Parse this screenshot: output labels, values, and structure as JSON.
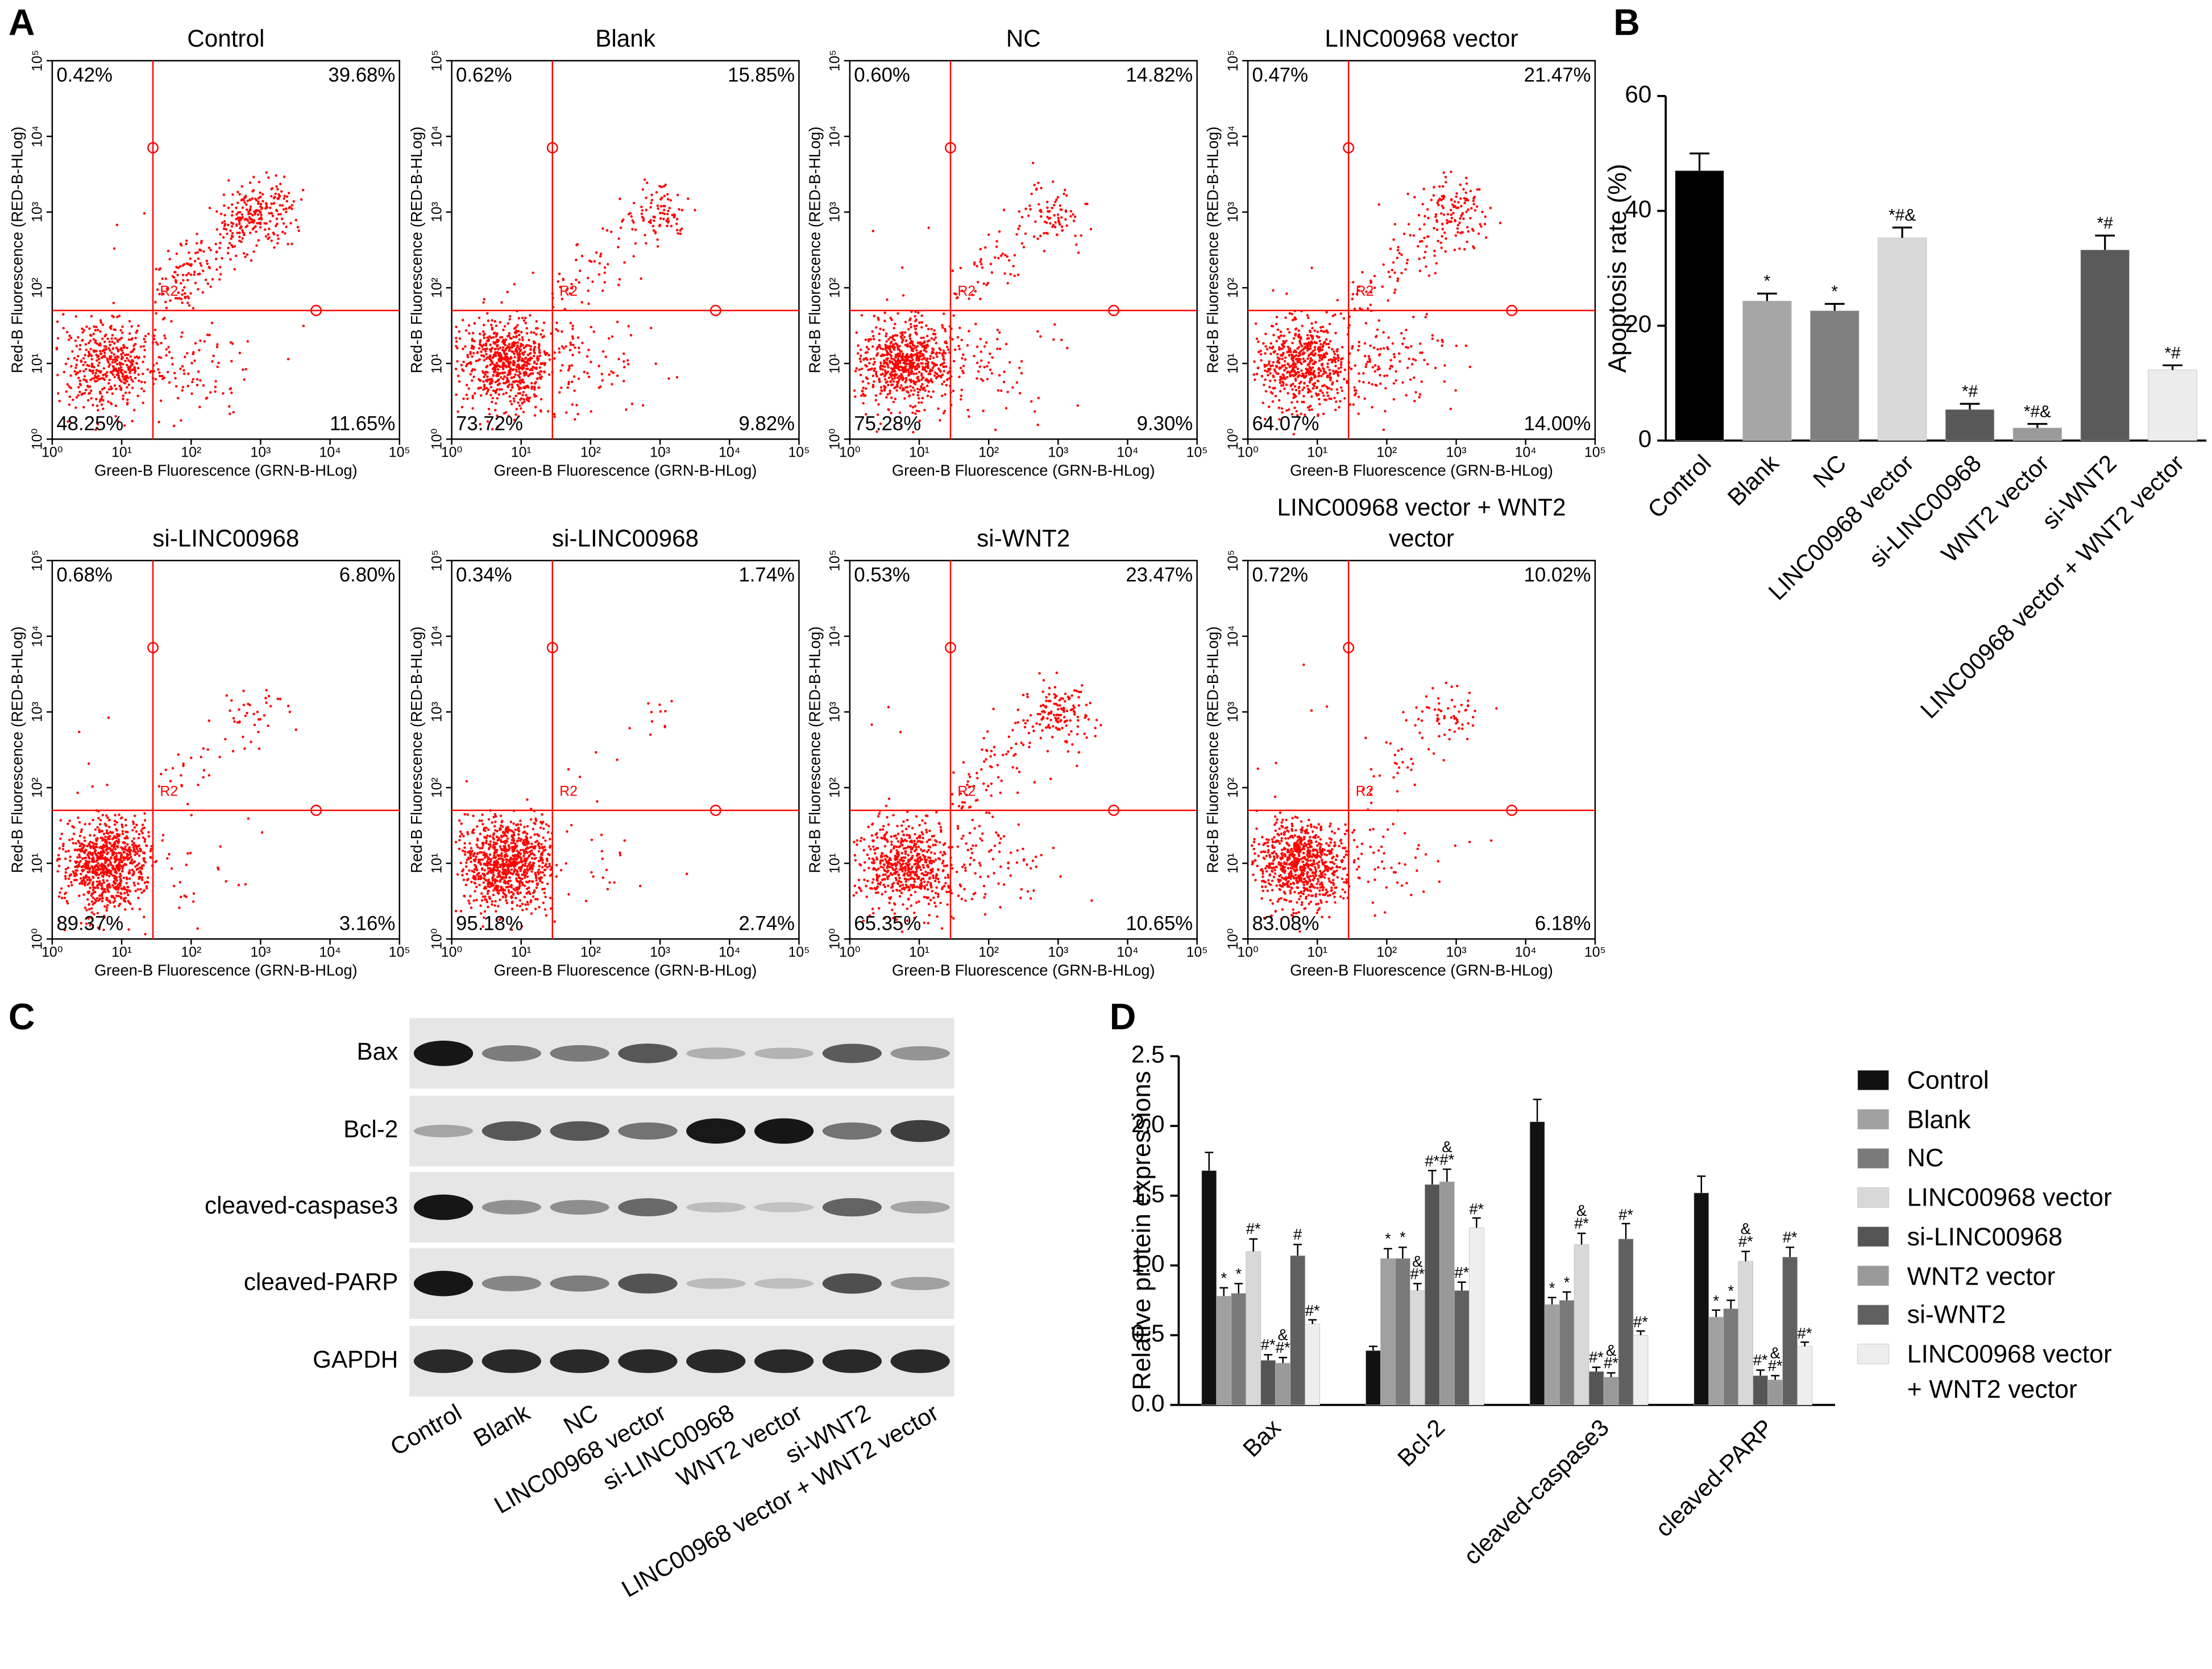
{
  "panel_labels": [
    "A",
    "B",
    "C",
    "D"
  ],
  "chart_data": [
    {
      "type": "scatter",
      "title": "Control",
      "values": [
        0.42,
        39.68,
        48.25,
        11.65
      ],
      "value_labels": [
        "0.42%",
        "39.68%",
        "48.25%",
        "11.65%"
      ],
      "xlabel": "Green-B Fluorescence (GRN-B-HLog)",
      "ylabel": "Red-B Fluorescence (RED-B-HLog)",
      "gate_label": "R2",
      "color": "#ff0000",
      "xscale": "log",
      "yscale": "log",
      "xlim": [
        1,
        100000
      ],
      "ylim": [
        1,
        100000
      ],
      "xticks": [
        {
          "value": 1,
          "label": "10⁰"
        },
        {
          "value": 10,
          "label": "10¹"
        },
        {
          "value": 100,
          "label": "10²"
        },
        {
          "value": 1000,
          "label": "10³"
        },
        {
          "value": 10000,
          "label": "10⁴"
        },
        {
          "value": 100000,
          "label": "10⁵"
        }
      ],
      "yticks": [
        {
          "value": 1,
          "label": "10⁰"
        },
        {
          "value": 10,
          "label": "10¹"
        },
        {
          "value": 100,
          "label": "10²"
        },
        {
          "value": 1000,
          "label": "10³"
        },
        {
          "value": 10000,
          "label": "10⁴"
        },
        {
          "value": 100000,
          "label": "10⁵"
        }
      ]
    },
    {
      "type": "scatter",
      "title": "Blank",
      "values": [
        0.62,
        15.85,
        73.72,
        9.82
      ],
      "value_labels": [
        "0.62%",
        "15.85%",
        "73.72%",
        "9.82%"
      ],
      "xlabel": "Green-B Fluorescence (GRN-B-HLog)",
      "ylabel": "Red-B Fluorescence (RED-B-HLog)",
      "gate_label": "R2",
      "color": "#ff0000",
      "xscale": "log",
      "yscale": "log",
      "xlim": [
        1,
        100000
      ],
      "ylim": [
        1,
        100000
      ],
      "xticks": [
        {
          "value": 1,
          "label": "10⁰"
        },
        {
          "value": 10,
          "label": "10¹"
        },
        {
          "value": 100,
          "label": "10²"
        },
        {
          "value": 1000,
          "label": "10³"
        },
        {
          "value": 10000,
          "label": "10⁴"
        },
        {
          "value": 100000,
          "label": "10⁵"
        }
      ],
      "yticks": [
        {
          "value": 1,
          "label": "10⁰"
        },
        {
          "value": 10,
          "label": "10¹"
        },
        {
          "value": 100,
          "label": "10²"
        },
        {
          "value": 1000,
          "label": "10³"
        },
        {
          "value": 10000,
          "label": "10⁴"
        },
        {
          "value": 100000,
          "label": "10⁵"
        }
      ]
    },
    {
      "type": "scatter",
      "title": "NC",
      "values": [
        0.6,
        14.82,
        75.28,
        9.3
      ],
      "value_labels": [
        "0.60%",
        "14.82%",
        "75.28%",
        "9.30%"
      ],
      "xlabel": "Green-B Fluorescence (GRN-B-HLog)",
      "ylabel": "Red-B Fluorescence (RED-B-HLog)",
      "gate_label": "R2",
      "color": "#ff0000",
      "xscale": "log",
      "yscale": "log",
      "xlim": [
        1,
        100000
      ],
      "ylim": [
        1,
        100000
      ],
      "xticks": [
        {
          "value": 1,
          "label": "10⁰"
        },
        {
          "value": 10,
          "label": "10¹"
        },
        {
          "value": 100,
          "label": "10²"
        },
        {
          "value": 1000,
          "label": "10³"
        },
        {
          "value": 10000,
          "label": "10⁴"
        },
        {
          "value": 100000,
          "label": "10⁵"
        }
      ],
      "yticks": [
        {
          "value": 1,
          "label": "10⁰"
        },
        {
          "value": 10,
          "label": "10¹"
        },
        {
          "value": 100,
          "label": "10²"
        },
        {
          "value": 1000,
          "label": "10³"
        },
        {
          "value": 10000,
          "label": "10⁴"
        },
        {
          "value": 100000,
          "label": "10⁵"
        }
      ]
    },
    {
      "type": "scatter",
      "title": "LINC00968 vector",
      "values": [
        0.47,
        21.47,
        64.07,
        14.0
      ],
      "value_labels": [
        "0.47%",
        "21.47%",
        "64.07%",
        "14.00%"
      ],
      "xlabel": "Green-B Fluorescence (GRN-B-HLog)",
      "ylabel": "Red-B Fluorescence (RED-B-HLog)",
      "gate_label": "R2",
      "color": "#ff0000",
      "xscale": "log",
      "yscale": "log",
      "xlim": [
        1,
        100000
      ],
      "ylim": [
        1,
        100000
      ],
      "xticks": [
        {
          "value": 1,
          "label": "10⁰"
        },
        {
          "value": 10,
          "label": "10¹"
        },
        {
          "value": 100,
          "label": "10²"
        },
        {
          "value": 1000,
          "label": "10³"
        },
        {
          "value": 10000,
          "label": "10⁴"
        },
        {
          "value": 100000,
          "label": "10⁵"
        }
      ],
      "yticks": [
        {
          "value": 1,
          "label": "10⁰"
        },
        {
          "value": 10,
          "label": "10¹"
        },
        {
          "value": 100,
          "label": "10²"
        },
        {
          "value": 1000,
          "label": "10³"
        },
        {
          "value": 10000,
          "label": "10⁴"
        },
        {
          "value": 100000,
          "label": "10⁵"
        }
      ]
    },
    {
      "type": "scatter",
      "title": "si-LINC00968",
      "values": [
        0.68,
        6.8,
        89.37,
        3.16
      ],
      "value_labels": [
        "0.68%",
        "6.80%",
        "89.37%",
        "3.16%"
      ],
      "xlabel": "Green-B Fluorescence (GRN-B-HLog)",
      "ylabel": "Red-B Fluorescence (RED-B-HLog)",
      "gate_label": "R2",
      "color": "#ff0000",
      "xscale": "log",
      "yscale": "log",
      "xlim": [
        1,
        100000
      ],
      "ylim": [
        1,
        100000
      ],
      "xticks": [
        {
          "value": 1,
          "label": "10⁰"
        },
        {
          "value": 10,
          "label": "10¹"
        },
        {
          "value": 100,
          "label": "10²"
        },
        {
          "value": 1000,
          "label": "10³"
        },
        {
          "value": 10000,
          "label": "10⁴"
        },
        {
          "value": 100000,
          "label": "10⁵"
        }
      ],
      "yticks": [
        {
          "value": 1,
          "label": "10⁰"
        },
        {
          "value": 10,
          "label": "10¹"
        },
        {
          "value": 100,
          "label": "10²"
        },
        {
          "value": 1000,
          "label": "10³"
        },
        {
          "value": 10000,
          "label": "10⁴"
        },
        {
          "value": 100000,
          "label": "10⁵"
        }
      ]
    },
    {
      "type": "scatter",
      "title": "si-LINC00968",
      "values": [
        0.34,
        1.74,
        95.18,
        2.74
      ],
      "value_labels": [
        "0.34%",
        "1.74%",
        "95.18%",
        "2.74%"
      ],
      "xlabel": "Green-B Fluorescence (GRN-B-HLog)",
      "ylabel": "Red-B Fluorescence (RED-B-HLog)",
      "gate_label": "R2",
      "color": "#ff0000",
      "xscale": "log",
      "yscale": "log",
      "xlim": [
        1,
        100000
      ],
      "ylim": [
        1,
        100000
      ],
      "xticks": [
        {
          "value": 1,
          "label": "10⁰"
        },
        {
          "value": 10,
          "label": "10¹"
        },
        {
          "value": 100,
          "label": "10²"
        },
        {
          "value": 1000,
          "label": "10³"
        },
        {
          "value": 10000,
          "label": "10⁴"
        },
        {
          "value": 100000,
          "label": "10⁵"
        }
      ],
      "yticks": [
        {
          "value": 1,
          "label": "10⁰"
        },
        {
          "value": 10,
          "label": "10¹"
        },
        {
          "value": 100,
          "label": "10²"
        },
        {
          "value": 1000,
          "label": "10³"
        },
        {
          "value": 10000,
          "label": "10⁴"
        },
        {
          "value": 100000,
          "label": "10⁵"
        }
      ]
    },
    {
      "type": "scatter",
      "title": "si-WNT2",
      "values": [
        0.53,
        23.47,
        65.35,
        10.65
      ],
      "value_labels": [
        "0.53%",
        "23.47%",
        "65.35%",
        "10.65%"
      ],
      "xlabel": "Green-B Fluorescence (GRN-B-HLog)",
      "ylabel": "Red-B Fluorescence (RED-B-HLog)",
      "gate_label": "R2",
      "color": "#ff0000",
      "xscale": "log",
      "yscale": "log",
      "xlim": [
        1,
        100000
      ],
      "ylim": [
        1,
        100000
      ],
      "xticks": [
        {
          "value": 1,
          "label": "10⁰"
        },
        {
          "value": 10,
          "label": "10¹"
        },
        {
          "value": 100,
          "label": "10²"
        },
        {
          "value": 1000,
          "label": "10³"
        },
        {
          "value": 10000,
          "label": "10⁴"
        },
        {
          "value": 100000,
          "label": "10⁵"
        }
      ],
      "yticks": [
        {
          "value": 1,
          "label": "10⁰"
        },
        {
          "value": 10,
          "label": "10¹"
        },
        {
          "value": 100,
          "label": "10²"
        },
        {
          "value": 1000,
          "label": "10³"
        },
        {
          "value": 10000,
          "label": "10⁴"
        },
        {
          "value": 100000,
          "label": "10⁵"
        }
      ]
    },
    {
      "type": "scatter",
      "title": "LINC00968 vector + WNT2 vector",
      "values": [
        0.72,
        10.02,
        83.08,
        6.18
      ],
      "value_labels": [
        "0.72%",
        "10.02%",
        "83.08%",
        "6.18%"
      ],
      "xlabel": "Green-B Fluorescence (GRN-B-HLog)",
      "ylabel": "Red-B Fluorescence (RED-B-HLog)",
      "gate_label": "R2",
      "color": "#ff0000",
      "xscale": "log",
      "yscale": "log",
      "xlim": [
        1,
        100000
      ],
      "ylim": [
        1,
        100000
      ],
      "xticks": [
        {
          "value": 1,
          "label": "10⁰"
        },
        {
          "value": 10,
          "label": "10¹"
        },
        {
          "value": 100,
          "label": "10²"
        },
        {
          "value": 1000,
          "label": "10³"
        },
        {
          "value": 10000,
          "label": "10⁴"
        },
        {
          "value": 100000,
          "label": "10⁵"
        }
      ],
      "yticks": [
        {
          "value": 1,
          "label": "10⁰"
        },
        {
          "value": 10,
          "label": "10¹"
        },
        {
          "value": 100,
          "label": "10²"
        },
        {
          "value": 1000,
          "label": "10³"
        },
        {
          "value": 10000,
          "label": "10⁴"
        },
        {
          "value": 100000,
          "label": "10⁵"
        }
      ]
    },
    {
      "type": "bar",
      "ylabel": "Apoptosis rate (%)",
      "categories": [
        "Control",
        "Blank",
        "NC",
        "LINC00968 vector",
        "si-LINC00968",
        "WNT2 vector",
        "si-WNT2",
        "LINC00968 vector + WNT2 vector"
      ],
      "values": [
        47.0,
        24.3,
        22.6,
        35.3,
        5.4,
        2.2,
        33.2,
        12.3
      ],
      "errors": [
        3.0,
        1.3,
        1.2,
        1.8,
        1.0,
        0.7,
        2.5,
        0.8
      ],
      "colors": [
        "#000000",
        "#a6a6a6",
        "#808080",
        "#d9d9d9",
        "#595959",
        "#9a9a9a",
        "#5a5a5a",
        "#ececec"
      ],
      "annotations": [
        null,
        "*",
        "*",
        "*#&",
        "*#",
        "*#&",
        "*#",
        "*#"
      ],
      "ylim": [
        0,
        60
      ],
      "yticks": [
        0,
        20,
        40,
        60
      ]
    },
    {
      "type": "grouped_bar",
      "ylabel": "Relative protein expressions",
      "legend": "right",
      "categories": [
        "Bax",
        "Bcl-2",
        "cleaved-caspase3",
        "cleaved-PARP"
      ],
      "ylim": [
        0,
        2.5
      ],
      "yticks": [
        {
          "value": 0,
          "label": "0.0"
        },
        0.5,
        {
          "value": 1,
          "label": "1.0"
        },
        1.5,
        {
          "value": 2,
          "label": "2.0"
        },
        2.5
      ],
      "series": [
        {
          "name": "Control",
          "color": "#111111",
          "values": [
            1.68,
            0.39,
            2.03,
            1.52
          ],
          "errors": [
            0.13,
            0.03,
            0.16,
            0.12
          ],
          "annotations": [
            null,
            null,
            null,
            null
          ]
        },
        {
          "name": "Blank",
          "color": "#a0a0a0",
          "values": [
            0.78,
            1.05,
            0.72,
            0.63
          ],
          "errors": [
            0.06,
            0.07,
            0.05,
            0.05
          ],
          "annotations": [
            "*",
            "*",
            "*",
            "*"
          ]
        },
        {
          "name": "NC",
          "color": "#7a7a7a",
          "values": [
            0.8,
            1.05,
            0.75,
            0.69
          ],
          "errors": [
            0.07,
            0.08,
            0.06,
            0.06
          ],
          "annotations": [
            "*",
            "*",
            "*",
            "*"
          ]
        },
        {
          "name": "LINC00968 vector",
          "color": "#d8d8d8",
          "values": [
            1.1,
            0.82,
            1.15,
            1.03
          ],
          "errors": [
            0.09,
            0.05,
            0.08,
            0.07
          ],
          "annotations": [
            "#*",
            "&#*",
            "&#*",
            "&#*"
          ]
        },
        {
          "name": "si-LINC00968",
          "color": "#555555",
          "values": [
            0.32,
            1.58,
            0.24,
            0.21
          ],
          "errors": [
            0.04,
            0.1,
            0.03,
            0.04
          ],
          "annotations": [
            "#*",
            "#*",
            "#*",
            "#*"
          ]
        },
        {
          "name": "WNT2 vector",
          "color": "#999999",
          "values": [
            0.3,
            1.6,
            0.2,
            0.18
          ],
          "errors": [
            0.04,
            0.09,
            0.03,
            0.03
          ],
          "annotations": [
            "&#*",
            "&#*",
            "&#*",
            "&#*"
          ]
        },
        {
          "name": "si-WNT2",
          "color": "#606060",
          "values": [
            1.07,
            0.82,
            1.19,
            1.06
          ],
          "errors": [
            0.08,
            0.06,
            0.11,
            0.07
          ],
          "annotations": [
            "#",
            "#*",
            "#*",
            "#*"
          ]
        },
        {
          "name": "LINC00968 vector + WNT2 vector",
          "color": "#eeeeee",
          "values": [
            0.58,
            1.27,
            0.5,
            0.42
          ],
          "errors": [
            0.03,
            0.07,
            0.03,
            0.03
          ],
          "annotations": [
            "#*",
            "#*",
            "#*",
            "#*"
          ]
        }
      ]
    }
  ],
  "blot": {
    "proteins": [
      "Bax",
      "Bcl-2",
      "cleaved-caspase3",
      "cleaved-PARP",
      "GAPDH"
    ],
    "lanes": [
      "Control",
      "Blank",
      "NC",
      "LINC00968 vector",
      "si-LINC00968",
      "WNT2 vector",
      "si-WNT2",
      "LINC00968 vector + WNT2 vector"
    ]
  }
}
